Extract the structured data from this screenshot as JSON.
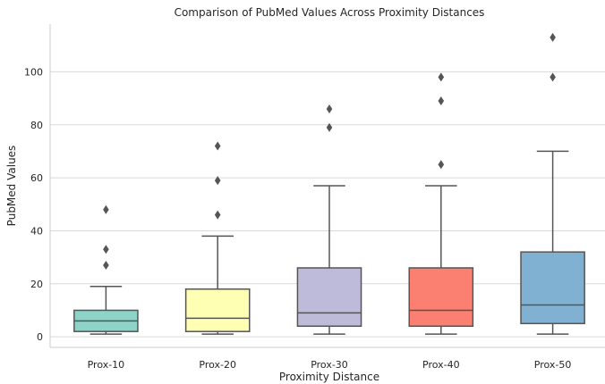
{
  "chart_data": {
    "type": "box",
    "title": "Comparison of PubMed Values Across Proximity Distances",
    "xlabel": "Proximity Distance",
    "ylabel": "PubMed Values",
    "ylim": [
      -4,
      118
    ],
    "yticks": [
      0,
      20,
      40,
      60,
      80,
      100
    ],
    "grid": "horizontal",
    "categories": [
      "Prox-10",
      "Prox-20",
      "Prox-30",
      "Prox-40",
      "Prox-50"
    ],
    "boxes": [
      {
        "category": "Prox-10",
        "whisker_low": 1,
        "q1": 2,
        "median": 6,
        "q3": 10,
        "whisker_high": 19,
        "outliers": [
          27,
          33,
          48
        ],
        "color": "#8dd3c7"
      },
      {
        "category": "Prox-20",
        "whisker_low": 1,
        "q1": 2,
        "median": 7,
        "q3": 18,
        "whisker_high": 38,
        "outliers": [
          46,
          59,
          72
        ],
        "color": "#ffffb3"
      },
      {
        "category": "Prox-30",
        "whisker_low": 1,
        "q1": 4,
        "median": 9,
        "q3": 26,
        "whisker_high": 57,
        "outliers": [
          79,
          86
        ],
        "color": "#bebada"
      },
      {
        "category": "Prox-40",
        "whisker_low": 1,
        "q1": 4,
        "median": 10,
        "q3": 26,
        "whisker_high": 57,
        "outliers": [
          65,
          89,
          98
        ],
        "color": "#fb8072"
      },
      {
        "category": "Prox-50",
        "whisker_low": 1,
        "q1": 5,
        "median": 12,
        "q3": 32,
        "whisker_high": 70,
        "outliers": [
          98,
          113
        ],
        "color": "#80b1d3"
      }
    ]
  }
}
